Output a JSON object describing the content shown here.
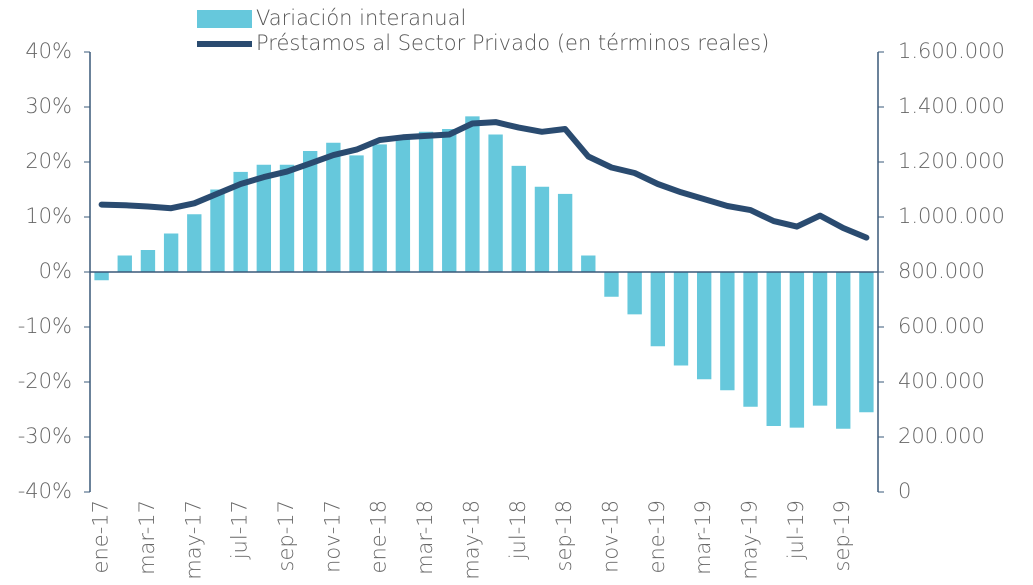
{
  "chart_data": {
    "type": "bar-line",
    "categories": [
      "ene-17",
      null,
      "mar-17",
      null,
      "may-17",
      null,
      "jul-17",
      null,
      "sep-17",
      null,
      "nov-17",
      null,
      "ene-18",
      null,
      "mar-18",
      null,
      "may-18",
      null,
      "jul-18",
      null,
      "sep-18",
      null,
      "nov-18",
      null,
      "ene-19",
      null,
      "mar-19",
      null,
      "may-19",
      null,
      "jul-19",
      null,
      "sep-19",
      null
    ],
    "series": [
      {
        "name": "Variación interanual",
        "type": "bar",
        "color": "#66c8dc",
        "values": [
          -1.5,
          3,
          4,
          7,
          10.5,
          15,
          18.2,
          19.5,
          19.5,
          22,
          23.5,
          21.2,
          23.2,
          24.5,
          25.5,
          26,
          28.3,
          25,
          19.3,
          15.5,
          14.2,
          3,
          -4.5,
          -7.7,
          -13.5,
          -17,
          -19.5,
          -21.5,
          -24.5,
          -28,
          -28.3,
          -24.3,
          -28.5,
          -25.5
        ]
      },
      {
        "name": "Préstamos al Sector Privado (en términos reales)",
        "type": "line",
        "color": "#2a4b70",
        "axis": "y2",
        "values": [
          1045000,
          1043000,
          1038000,
          1032000,
          1050000,
          1085000,
          1120000,
          1145000,
          1165000,
          1195000,
          1225000,
          1245000,
          1280000,
          1290000,
          1295000,
          1300000,
          1340000,
          1345000,
          1325000,
          1310000,
          1320000,
          1220000,
          1180000,
          1160000,
          1120000,
          1090000,
          1065000,
          1040000,
          1025000,
          985000,
          965000,
          1005000,
          960000,
          925000
        ]
      }
    ],
    "ylim": [
      -40,
      40
    ],
    "yticks": [
      {
        "value": -40,
        "label": "-40%"
      },
      {
        "value": -30,
        "label": "-30%"
      },
      {
        "value": -20,
        "label": "-20%"
      },
      {
        "value": -10,
        "label": "-10%"
      },
      {
        "value": 0,
        "label": "0%"
      },
      {
        "value": 10,
        "label": "10%"
      },
      {
        "value": 20,
        "label": "20%"
      },
      {
        "value": 30,
        "label": "30%"
      },
      {
        "value": 40,
        "label": "40%"
      }
    ],
    "y2lim": [
      0,
      1600000
    ],
    "y2ticks": [
      0,
      {
        "value": 200000,
        "label": "200.000"
      },
      {
        "value": 400000,
        "label": "400.000"
      },
      {
        "value": 600000,
        "label": "600.000"
      },
      {
        "value": 800000,
        "label": "800.000"
      },
      {
        "value": 1000000,
        "label": "1.000.000"
      },
      {
        "value": 1200000,
        "label": "1.200.000"
      },
      {
        "value": 1400000,
        "label": "1.400.000"
      },
      {
        "value": 1600000,
        "label": "1.600.000"
      }
    ],
    "legend": "top"
  }
}
